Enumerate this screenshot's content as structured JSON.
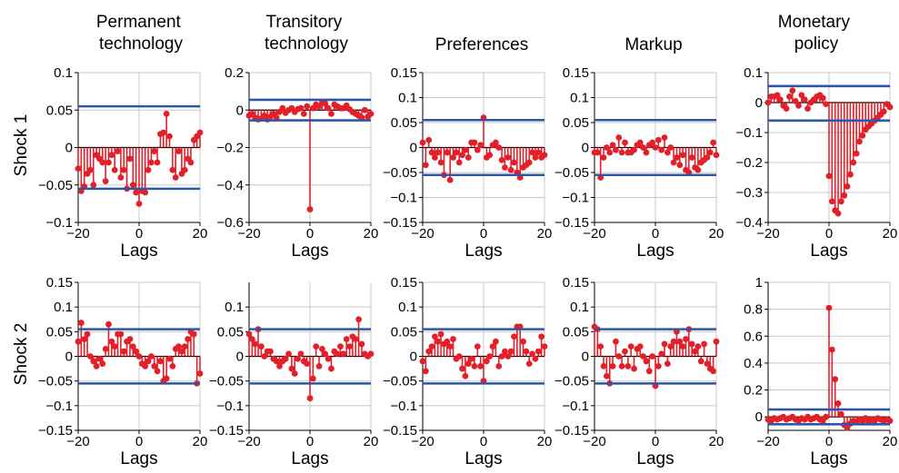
{
  "figure": {
    "columns": [
      "Permanent\ntechnology",
      "Transitory\ntechnology",
      "Preferences",
      "Markup",
      "Monetary\npolicy"
    ],
    "rows": [
      "Shock 1",
      "Shock 2"
    ]
  },
  "colors": {
    "stem": "#e3202a",
    "bound": "#2f56a6"
  },
  "chart_data": [
    {
      "type": "stem",
      "row": "Shock 1",
      "column": "Permanent technology",
      "xlabel": "Lags",
      "xlim": [
        -20,
        20
      ],
      "ylim": [
        -0.1,
        0.1
      ],
      "xticks": [
        -20,
        0,
        20
      ],
      "xtick_labels": [
        "−20",
        "0",
        "20"
      ],
      "yticks": [
        -0.1,
        -0.05,
        0,
        0.05,
        0.1
      ],
      "ytick_labels": [
        "−0.1",
        "−0.05",
        "0",
        "0.05",
        "0.1"
      ],
      "bounds": [
        0.055,
        -0.055
      ],
      "x": [
        -20,
        -19,
        -18,
        -17,
        -16,
        -15,
        -14,
        -13,
        -12,
        -11,
        -10,
        -9,
        -8,
        -7,
        -6,
        -5,
        -4,
        -3,
        -2,
        -1,
        0,
        1,
        2,
        3,
        4,
        5,
        6,
        7,
        8,
        9,
        10,
        11,
        12,
        13,
        14,
        15,
        16,
        17,
        18,
        19,
        20
      ],
      "y": [
        -0.028,
        -0.058,
        -0.052,
        -0.035,
        -0.03,
        -0.05,
        -0.01,
        -0.015,
        -0.02,
        -0.045,
        -0.02,
        -0.01,
        -0.03,
        -0.005,
        -0.04,
        -0.03,
        -0.055,
        -0.015,
        -0.05,
        -0.06,
        -0.075,
        -0.058,
        -0.06,
        -0.03,
        -0.02,
        -0.005,
        -0.02,
        0.018,
        0.02,
        0.045,
        0.015,
        -0.03,
        -0.04,
        -0.005,
        -0.035,
        -0.03,
        -0.015,
        -0.02,
        0.01,
        0.015,
        0.02
      ]
    },
    {
      "type": "stem",
      "row": "Shock 1",
      "column": "Transitory technology",
      "xlabel": "Lags",
      "xlim": [
        -20,
        20
      ],
      "ylim": [
        -0.6,
        0.2
      ],
      "xticks": [
        -20,
        0,
        20
      ],
      "xtick_labels": [
        "−20",
        "0",
        "20"
      ],
      "yticks": [
        -0.6,
        -0.4,
        -0.2,
        0,
        0.2
      ],
      "ytick_labels": [
        "−0.6",
        "−0.4",
        "−0.2",
        "0",
        "0.2"
      ],
      "bounds": [
        0.055,
        -0.055
      ],
      "x": [
        -20,
        -19,
        -18,
        -17,
        -16,
        -15,
        -14,
        -13,
        -12,
        -11,
        -10,
        -9,
        -8,
        -7,
        -6,
        -5,
        -4,
        -3,
        -2,
        -1,
        0,
        1,
        2,
        3,
        4,
        5,
        6,
        7,
        8,
        9,
        10,
        11,
        12,
        13,
        14,
        15,
        16,
        17,
        18,
        19,
        20
      ],
      "y": [
        -0.03,
        -0.02,
        -0.04,
        -0.05,
        -0.045,
        -0.03,
        -0.05,
        -0.035,
        -0.02,
        -0.04,
        -0.01,
        0.01,
        -0.015,
        0.0,
        0.01,
        -0.01,
        0.005,
        0.01,
        -0.02,
        0.02,
        -0.53,
        0.01,
        0.03,
        0.02,
        0.04,
        0.035,
        0.01,
        -0.02,
        0.03,
        0.02,
        0.01,
        0.01,
        0.025,
        0.005,
        -0.01,
        -0.02,
        -0.03,
        -0.04,
        0.0,
        -0.035,
        -0.02
      ]
    },
    {
      "type": "stem",
      "row": "Shock 1",
      "column": "Preferences",
      "xlabel": "Lags",
      "xlim": [
        -20,
        20
      ],
      "ylim": [
        -0.15,
        0.15
      ],
      "xticks": [
        -20,
        0,
        20
      ],
      "xtick_labels": [
        "−20",
        "0",
        "20"
      ],
      "yticks": [
        -0.15,
        -0.1,
        -0.05,
        0,
        0.05,
        0.1,
        0.15
      ],
      "ytick_labels": [
        "−0.15",
        "−0.1",
        "−0.05",
        "0",
        "0.05",
        "0.1",
        "0.15"
      ],
      "bounds": [
        0.055,
        -0.055
      ],
      "x": [
        -20,
        -19,
        -18,
        -17,
        -16,
        -15,
        -14,
        -13,
        -12,
        -11,
        -10,
        -9,
        -8,
        -7,
        -6,
        -5,
        -4,
        -3,
        -2,
        -1,
        0,
        1,
        2,
        3,
        4,
        5,
        6,
        7,
        8,
        9,
        10,
        11,
        12,
        13,
        14,
        15,
        16,
        17,
        18,
        19,
        20
      ],
      "y": [
        0.01,
        -0.035,
        0.015,
        -0.01,
        -0.02,
        -0.01,
        -0.03,
        -0.055,
        -0.01,
        -0.065,
        -0.02,
        -0.01,
        -0.03,
        -0.015,
        -0.005,
        -0.02,
        0.01,
        0.01,
        -0.005,
        0.005,
        0.06,
        -0.02,
        -0.015,
        0.005,
        0.01,
        0.0,
        -0.025,
        -0.04,
        -0.02,
        -0.045,
        -0.03,
        -0.05,
        -0.06,
        -0.04,
        -0.035,
        -0.03,
        -0.01,
        -0.02,
        -0.01,
        -0.02,
        -0.015
      ]
    },
    {
      "type": "stem",
      "row": "Shock 1",
      "column": "Markup",
      "xlabel": "Lags",
      "xlim": [
        -20,
        20
      ],
      "ylim": [
        -0.15,
        0.15
      ],
      "xticks": [
        -20,
        0,
        20
      ],
      "xtick_labels": [
        "−20",
        "0",
        "20"
      ],
      "yticks": [
        -0.15,
        -0.1,
        -0.05,
        0,
        0.05,
        0.1,
        0.15
      ],
      "ytick_labels": [
        "−0.15",
        "−0.1",
        "−0.05",
        "0",
        "0.05",
        "0.1",
        "0.15"
      ],
      "bounds": [
        0.055,
        -0.055
      ],
      "x": [
        -20,
        -19,
        -18,
        -17,
        -16,
        -15,
        -14,
        -13,
        -12,
        -11,
        -10,
        -9,
        -8,
        -7,
        -6,
        -5,
        -4,
        -3,
        -2,
        -1,
        0,
        1,
        2,
        3,
        4,
        5,
        6,
        7,
        8,
        9,
        10,
        11,
        12,
        13,
        14,
        15,
        16,
        17,
        18,
        19,
        20
      ],
      "y": [
        -0.01,
        -0.01,
        -0.06,
        -0.02,
        0.0,
        -0.01,
        0.005,
        -0.005,
        0.02,
        -0.01,
        0.01,
        -0.01,
        -0.01,
        -0.005,
        0.005,
        0.01,
        0.0,
        -0.01,
        0.005,
        0.01,
        0.0,
        0.015,
        -0.005,
        0.02,
        -0.01,
        0.0,
        -0.03,
        -0.02,
        -0.035,
        -0.015,
        -0.045,
        -0.05,
        -0.02,
        -0.04,
        -0.045,
        -0.03,
        -0.025,
        -0.02,
        -0.01,
        0.01,
        -0.015
      ]
    },
    {
      "type": "stem",
      "row": "Shock 1",
      "column": "Monetary policy",
      "xlabel": "Lags",
      "xlim": [
        -20,
        20
      ],
      "ylim": [
        -0.4,
        0.1
      ],
      "xticks": [
        -20,
        0,
        20
      ],
      "xtick_labels": [
        "−20",
        "0",
        "20"
      ],
      "yticks": [
        -0.4,
        -0.3,
        -0.2,
        -0.1,
        0,
        0.1
      ],
      "ytick_labels": [
        "−0.4",
        "−0.3",
        "−0.2",
        "−0.1",
        "0",
        "0.1"
      ],
      "bounds": [
        0.055,
        -0.06
      ],
      "x": [
        -20,
        -19,
        -18,
        -17,
        -16,
        -15,
        -14,
        -13,
        -12,
        -11,
        -10,
        -9,
        -8,
        -7,
        -6,
        -5,
        -4,
        -3,
        -2,
        -1,
        0,
        1,
        2,
        3,
        4,
        5,
        6,
        7,
        8,
        9,
        10,
        11,
        12,
        13,
        14,
        15,
        16,
        17,
        18,
        19,
        20
      ],
      "y": [
        0.0,
        0.02,
        0.02,
        0.025,
        0.01,
        -0.01,
        -0.02,
        0.02,
        0.04,
        0.005,
        -0.01,
        0.025,
        0.01,
        -0.02,
        0.0,
        0.01,
        0.02,
        0.025,
        0.015,
        -0.005,
        -0.245,
        -0.33,
        -0.36,
        -0.37,
        -0.33,
        -0.31,
        -0.28,
        -0.24,
        -0.2,
        -0.17,
        -0.13,
        -0.11,
        -0.09,
        -0.08,
        -0.07,
        -0.06,
        -0.05,
        -0.04,
        -0.03,
        -0.005,
        -0.015
      ]
    },
    {
      "type": "stem",
      "row": "Shock 2",
      "column": "Permanent technology",
      "xlabel": "Lags",
      "xlim": [
        -20,
        20
      ],
      "ylim": [
        -0.15,
        0.15
      ],
      "xticks": [
        -20,
        0,
        20
      ],
      "xtick_labels": [
        "−20",
        "0",
        "20"
      ],
      "yticks": [
        -0.15,
        -0.1,
        -0.05,
        0,
        0.05,
        0.1,
        0.15
      ],
      "ytick_labels": [
        "−0.15",
        "−0.1",
        "−0.05",
        "0",
        "0.05",
        "0.1",
        "0.15"
      ],
      "bounds": [
        0.055,
        -0.055
      ],
      "x": [
        -20,
        -19,
        -18,
        -17,
        -16,
        -15,
        -14,
        -13,
        -12,
        -11,
        -10,
        -9,
        -8,
        -7,
        -6,
        -5,
        -4,
        -3,
        -2,
        -1,
        0,
        1,
        2,
        3,
        4,
        5,
        6,
        7,
        8,
        9,
        10,
        11,
        12,
        13,
        14,
        15,
        16,
        17,
        18,
        19,
        20
      ],
      "y": [
        0.03,
        0.068,
        0.035,
        0.045,
        0.0,
        -0.01,
        -0.02,
        -0.005,
        -0.015,
        0.015,
        0.065,
        0.03,
        0.02,
        0.045,
        0.045,
        0.01,
        0.03,
        0.035,
        0.02,
        0.01,
        0.0,
        -0.015,
        -0.02,
        -0.01,
        0.0,
        -0.02,
        -0.03,
        -0.01,
        -0.05,
        -0.045,
        -0.005,
        -0.02,
        0.015,
        0.02,
        0.01,
        0.02,
        0.035,
        0.05,
        0.045,
        -0.055,
        -0.035
      ]
    },
    {
      "type": "stem",
      "row": "Shock 2",
      "column": "Transitory technology",
      "xlabel": "Lags",
      "xlim": [
        -20,
        20
      ],
      "ylim": [
        -0.15,
        0.15
      ],
      "xticks": [
        -20,
        0,
        20
      ],
      "xtick_labels": [
        "−20",
        "0",
        "20"
      ],
      "yticks": [
        -0.15,
        -0.1,
        -0.05,
        0,
        0.05,
        0.1
      ],
      "ytick_labels": [
        "−0.15",
        "−0.1",
        "−0.05",
        "0",
        "0.05",
        "0.1"
      ],
      "bounds": [
        0.055,
        -0.055
      ],
      "x": [
        -20,
        -19,
        -18,
        -17,
        -16,
        -15,
        -14,
        -13,
        -12,
        -11,
        -10,
        -9,
        -8,
        -7,
        -6,
        -5,
        -4,
        -3,
        -2,
        -1,
        0,
        1,
        2,
        3,
        4,
        5,
        6,
        7,
        8,
        9,
        10,
        11,
        12,
        13,
        14,
        15,
        16,
        17,
        18,
        19,
        20
      ],
      "y": [
        0.045,
        0.035,
        0.025,
        0.055,
        0.02,
        0.0,
        0.01,
        0.01,
        -0.005,
        -0.01,
        -0.02,
        -0.01,
        -0.005,
        0.005,
        -0.025,
        -0.035,
        -0.005,
        0.005,
        -0.01,
        -0.015,
        -0.085,
        -0.045,
        0.02,
        -0.02,
        0.015,
        0.005,
        -0.005,
        -0.025,
        0.01,
        0.005,
        0.02,
        0.005,
        0.035,
        0.02,
        0.04,
        0.035,
        0.075,
        0.025,
        0.005,
        0.0,
        0.005
      ]
    },
    {
      "type": "stem",
      "row": "Shock 2",
      "column": "Preferences",
      "xlabel": "Lags",
      "xlim": [
        -20,
        20
      ],
      "ylim": [
        -0.15,
        0.15
      ],
      "xticks": [
        -20,
        0,
        20
      ],
      "xtick_labels": [
        "−20",
        "0",
        "20"
      ],
      "yticks": [
        -0.15,
        -0.1,
        -0.05,
        0,
        0.05,
        0.1,
        0.15
      ],
      "ytick_labels": [
        "−0.15",
        "−0.1",
        "−0.05",
        "0",
        "0.05",
        "0.1",
        "0.15"
      ],
      "bounds": [
        0.055,
        -0.055
      ],
      "x": [
        -20,
        -19,
        -18,
        -17,
        -16,
        -15,
        -14,
        -13,
        -12,
        -11,
        -10,
        -9,
        -8,
        -7,
        -6,
        -5,
        -4,
        -3,
        -2,
        -1,
        0,
        1,
        2,
        3,
        4,
        5,
        6,
        7,
        8,
        9,
        10,
        11,
        12,
        13,
        14,
        15,
        16,
        17,
        18,
        19,
        20
      ],
      "y": [
        -0.01,
        -0.03,
        0.01,
        0.02,
        0.04,
        0.03,
        0.045,
        0.025,
        0.03,
        0.02,
        0.035,
        -0.005,
        0.0,
        -0.025,
        -0.04,
        -0.015,
        -0.005,
        -0.02,
        0.02,
        -0.02,
        -0.05,
        -0.01,
        0.0,
        0.02,
        0.03,
        -0.02,
        0.0,
        0.01,
        0.0,
        0.01,
        0.04,
        0.06,
        0.06,
        0.03,
        0.01,
        -0.015,
        0.005,
        -0.005,
        0.01,
        0.04,
        0.02
      ]
    },
    {
      "type": "stem",
      "row": "Shock 2",
      "column": "Markup",
      "xlabel": "Lags",
      "xlim": [
        -20,
        20
      ],
      "ylim": [
        -0.15,
        0.15
      ],
      "xticks": [
        -20,
        0,
        20
      ],
      "xtick_labels": [
        "−20",
        "0",
        "20"
      ],
      "yticks": [
        -0.15,
        -0.1,
        -0.05,
        0,
        0.05,
        0.1,
        0.15
      ],
      "ytick_labels": [
        "−0.15",
        "−0.1",
        "−0.05",
        "0",
        "0.05",
        "0.1",
        "0.15"
      ],
      "bounds": [
        0.055,
        -0.055
      ],
      "x": [
        -20,
        -19,
        -18,
        -17,
        -16,
        -15,
        -14,
        -13,
        -12,
        -11,
        -10,
        -9,
        -8,
        -7,
        -6,
        -5,
        -4,
        -3,
        -2,
        -1,
        0,
        1,
        2,
        3,
        4,
        5,
        6,
        7,
        8,
        9,
        10,
        11,
        12,
        13,
        14,
        15,
        16,
        17,
        18,
        19,
        20
      ],
      "y": [
        0.06,
        0.055,
        0.02,
        -0.02,
        -0.04,
        -0.055,
        -0.02,
        0.03,
        0.0,
        -0.02,
        0.01,
        -0.02,
        0.02,
        -0.025,
        0.015,
        0.02,
        0.0,
        -0.01,
        -0.03,
        0.0,
        -0.06,
        -0.02,
        0.005,
        0.025,
        -0.015,
        0.02,
        0.03,
        0.05,
        0.03,
        0.02,
        0.035,
        0.055,
        0.025,
        0.01,
        0.02,
        -0.01,
        0.025,
        -0.015,
        -0.025,
        -0.03,
        0.03
      ]
    },
    {
      "type": "stem",
      "row": "Shock 2",
      "column": "Monetary policy",
      "xlabel": "Lags",
      "xlim": [
        -20,
        20
      ],
      "ylim": [
        -0.1,
        1
      ],
      "xticks": [
        -20,
        0,
        20
      ],
      "xtick_labels": [
        "−20",
        "0",
        "20"
      ],
      "yticks": [
        0,
        0.2,
        0.4,
        0.6,
        0.8,
        1
      ],
      "ytick_labels": [
        "0",
        "0.2",
        "0.4",
        "0.6",
        "0.8",
        "1"
      ],
      "bounds": [
        0.055,
        -0.055
      ],
      "x": [
        -20,
        -19,
        -18,
        -17,
        -16,
        -15,
        -14,
        -13,
        -12,
        -11,
        -10,
        -9,
        -8,
        -7,
        -6,
        -5,
        -4,
        -3,
        -2,
        -1,
        0,
        1,
        2,
        3,
        4,
        5,
        6,
        7,
        8,
        9,
        10,
        11,
        12,
        13,
        14,
        15,
        16,
        17,
        18,
        19,
        20
      ],
      "y": [
        -0.02,
        -0.03,
        -0.01,
        -0.02,
        -0.01,
        0.0,
        -0.02,
        -0.01,
        0.0,
        -0.02,
        -0.03,
        -0.01,
        -0.02,
        0.0,
        -0.02,
        -0.01,
        0.0,
        -0.02,
        -0.03,
        0.0,
        0.81,
        0.5,
        0.28,
        0.1,
        0.02,
        -0.06,
        -0.08,
        -0.05,
        -0.03,
        -0.04,
        -0.02,
        -0.03,
        -0.01,
        -0.04,
        -0.02,
        -0.03,
        -0.01,
        -0.02,
        -0.03,
        -0.02,
        -0.03
      ]
    }
  ]
}
